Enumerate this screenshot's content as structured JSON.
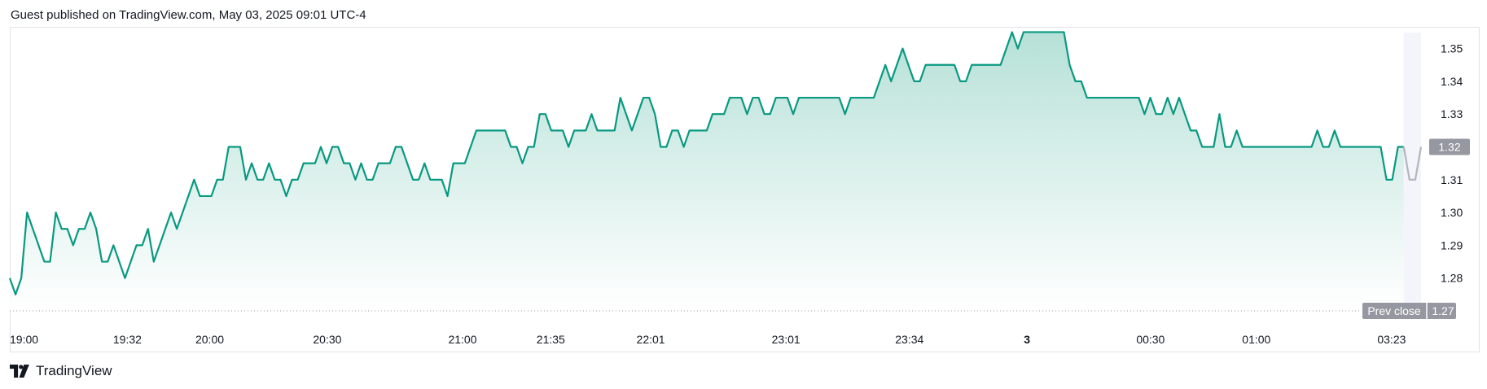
{
  "header": {
    "text": "Guest published on TradingView.com, May 03, 2025 09:01 UTC-4"
  },
  "footer": {
    "brand": "TradingView",
    "logo_icon": "tradingview-logo-icon"
  },
  "colors": {
    "line": "#089981",
    "fill_top": "#b2dfd5",
    "fill_bottom": "#ffffff",
    "last_segment": "#b2b5be",
    "badge_bg": "#9598a1",
    "prev_close_line": "#9598a1"
  },
  "chart_data": {
    "type": "area",
    "title": "",
    "xlabel": "",
    "ylabel": "",
    "ylim": [
      1.27,
      1.356
    ],
    "y_ticks": [
      "1.28",
      "1.29",
      "1.30",
      "1.31",
      "1.32",
      "1.33",
      "1.34",
      "1.35"
    ],
    "x_ticks": [
      {
        "label": "19:00",
        "x": 0,
        "bold": false
      },
      {
        "label": "19:32",
        "x": 20,
        "bold": false
      },
      {
        "label": "20:00",
        "x": 34,
        "bold": false
      },
      {
        "label": "20:30",
        "x": 54,
        "bold": false
      },
      {
        "label": "21:00",
        "x": 77,
        "bold": false
      },
      {
        "label": "21:35",
        "x": 92,
        "bold": false
      },
      {
        "label": "22:01",
        "x": 109,
        "bold": false
      },
      {
        "label": "23:01",
        "x": 132,
        "bold": false
      },
      {
        "label": "23:34",
        "x": 153,
        "bold": false
      },
      {
        "label": "3",
        "x": 173,
        "bold": true
      },
      {
        "label": "00:30",
        "x": 194,
        "bold": false
      },
      {
        "label": "01:00",
        "x": 212,
        "bold": false
      },
      {
        "label": "03:23",
        "x": 235,
        "bold": false
      }
    ],
    "series": [
      {
        "values": [
          1.28,
          1.275,
          1.28,
          1.3,
          1.295,
          1.29,
          1.285,
          1.285,
          1.3,
          1.295,
          1.295,
          1.29,
          1.295,
          1.295,
          1.3,
          1.295,
          1.285,
          1.285,
          1.29,
          1.285,
          1.28,
          1.285,
          1.29,
          1.29,
          1.295,
          1.285,
          1.29,
          1.295,
          1.3,
          1.295,
          1.3,
          1.305,
          1.31,
          1.305,
          1.305,
          1.305,
          1.31,
          1.31,
          1.32,
          1.32,
          1.32,
          1.31,
          1.315,
          1.31,
          1.31,
          1.315,
          1.31,
          1.31,
          1.305,
          1.31,
          1.31,
          1.315,
          1.315,
          1.315,
          1.32,
          1.315,
          1.32,
          1.32,
          1.315,
          1.315,
          1.31,
          1.315,
          1.31,
          1.31,
          1.315,
          1.315,
          1.315,
          1.32,
          1.32,
          1.315,
          1.31,
          1.31,
          1.315,
          1.31,
          1.31,
          1.31,
          1.305,
          1.315,
          1.315,
          1.315,
          1.32,
          1.325,
          1.325,
          1.325,
          1.325,
          1.325,
          1.325,
          1.32,
          1.32,
          1.315,
          1.32,
          1.32,
          1.33,
          1.33,
          1.325,
          1.325,
          1.325,
          1.32,
          1.325,
          1.325,
          1.325,
          1.33,
          1.325,
          1.325,
          1.325,
          1.325,
          1.335,
          1.33,
          1.325,
          1.33,
          1.335,
          1.335,
          1.33,
          1.32,
          1.32,
          1.325,
          1.325,
          1.32,
          1.325,
          1.325,
          1.325,
          1.325,
          1.33,
          1.33,
          1.33,
          1.335,
          1.335,
          1.335,
          1.33,
          1.335,
          1.335,
          1.33,
          1.33,
          1.335,
          1.335,
          1.335,
          1.33,
          1.335,
          1.335,
          1.335,
          1.335,
          1.335,
          1.335,
          1.335,
          1.335,
          1.33,
          1.335,
          1.335,
          1.335,
          1.335,
          1.335,
          1.34,
          1.345,
          1.34,
          1.345,
          1.35,
          1.345,
          1.34,
          1.34,
          1.345,
          1.345,
          1.345,
          1.345,
          1.345,
          1.345,
          1.34,
          1.34,
          1.345,
          1.345,
          1.345,
          1.345,
          1.345,
          1.345,
          1.35,
          1.355,
          1.35,
          1.355,
          1.355,
          1.355,
          1.355,
          1.355,
          1.355,
          1.355,
          1.355,
          1.345,
          1.34,
          1.34,
          1.335,
          1.335,
          1.335,
          1.335,
          1.335,
          1.335,
          1.335,
          1.335,
          1.335,
          1.335,
          1.33,
          1.335,
          1.33,
          1.33,
          1.335,
          1.33,
          1.335,
          1.33,
          1.325,
          1.325,
          1.32,
          1.32,
          1.32,
          1.33,
          1.32,
          1.32,
          1.325,
          1.32,
          1.32,
          1.32,
          1.32,
          1.32,
          1.32,
          1.32,
          1.32,
          1.32,
          1.32,
          1.32,
          1.32,
          1.32,
          1.325,
          1.32,
          1.32,
          1.325,
          1.32,
          1.32,
          1.32,
          1.32,
          1.32,
          1.32,
          1.32,
          1.32,
          1.31,
          1.31,
          1.32,
          1.32,
          1.31,
          1.31,
          1.32
        ]
      }
    ],
    "last_segment_points": 4,
    "last_price": "1.32",
    "prev_close": {
      "label": "Prev close",
      "value": "1.27",
      "y": 1.27
    },
    "grid": false,
    "legend": "none"
  }
}
